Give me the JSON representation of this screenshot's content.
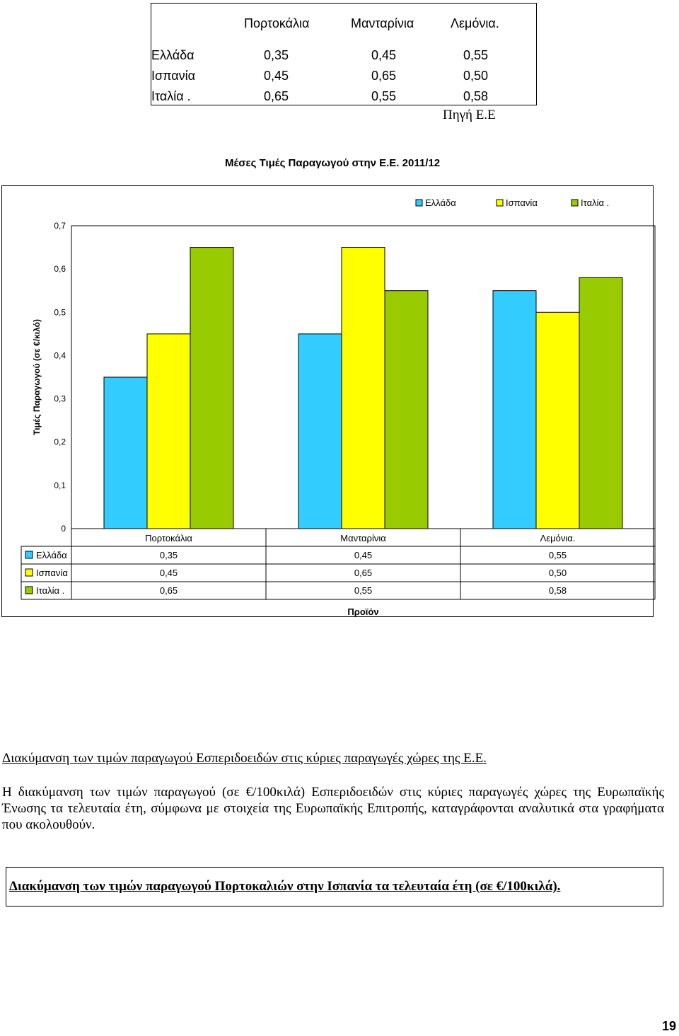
{
  "top_table": {
    "headers": [
      "Πορτοκάλια",
      "Μανταρίνια",
      "Λεμόνια."
    ],
    "rows": [
      {
        "country": "Ελλάδα",
        "values": [
          "0,35",
          "0,45",
          "0,55"
        ]
      },
      {
        "country": "Ισπανία",
        "values": [
          "0,45",
          "0,65",
          "0,50"
        ]
      },
      {
        "country": "Ιταλία .",
        "values": [
          "0,65",
          "0,55",
          "0,58"
        ]
      }
    ]
  },
  "source_note": "Πηγή Ε.Ε",
  "chart_data": {
    "type": "bar",
    "title": "Μέσες Τιμές Παραγωγού στην Ε.Ε. 2011/12",
    "xlabel": "Προϊόν",
    "ylabel": "Τιμές Παραγωγού (σε €/κιλό)",
    "ylim": [
      0,
      0.7
    ],
    "yticks": [
      "0",
      "0,1",
      "0,2",
      "0,3",
      "0,4",
      "0,5",
      "0,6",
      "0,7"
    ],
    "categories": [
      "Πορτοκάλια",
      "Μανταρίνια",
      "Λεμόνια."
    ],
    "series": [
      {
        "name": "Ελλάδα",
        "values": [
          0.35,
          0.45,
          0.55
        ],
        "labels": [
          "0,35",
          "0,45",
          "0,55"
        ],
        "color": "#33ccff"
      },
      {
        "name": "Ισπανία",
        "values": [
          0.45,
          0.65,
          0.5
        ],
        "labels": [
          "0,45",
          "0,65",
          "0,50"
        ],
        "color": "#ffff00"
      },
      {
        "name": "Ιταλία .",
        "values": [
          0.65,
          0.55,
          0.58
        ],
        "labels": [
          "0,65",
          "0,55",
          "0,58"
        ],
        "color": "#99cc00"
      }
    ],
    "legend_position": "top-right",
    "grid": false,
    "data_table": true
  },
  "text": {
    "section_heading": "Διακύμανση των τιμών παραγωγού Εσπεριδοειδών στις κύριες παραγωγές χώρες της Ε.Ε.",
    "paragraph": "Η διακύμανση των τιμών παραγωγού (σε €/100κιλά) Εσπεριδοειδών στις κύριες παραγωγές χώρες της Ευρωπαϊκής Ένωσης τα τελευταία έτη, σύμφωνα με στοιχεία της Ευρωπαϊκής Επιτροπής, καταγράφονται αναλυτικά στα γραφήματα που ακολουθούν.",
    "box_heading": "Διακύμανση των τιμών παραγωγού Πορτοκαλιών στην Ισπανία τα τελευταία έτη (σε €/100κιλά).",
    "page_number": "19"
  }
}
